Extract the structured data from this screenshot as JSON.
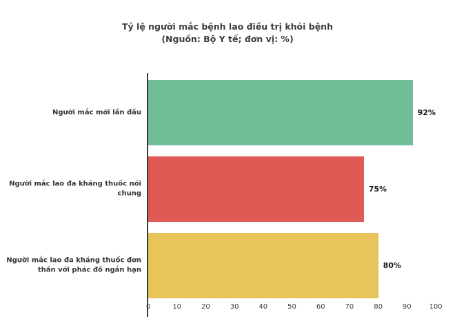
{
  "title": {
    "line1": "Tỷ lệ người mắc bệnh lao điều trị khỏi bệnh",
    "line2": "(Nguồn: Bộ Y tế; đơn vị: %)"
  },
  "chart_data": {
    "type": "bar",
    "orientation": "horizontal",
    "title": "Tỷ lệ người mắc bệnh lao điều trị khỏi bệnh (Nguồn: Bộ Y tế; đơn vị: %)",
    "categories": [
      "Người mắc mới lần đầu",
      "Người mắc lao đa kháng thuốc nói chung",
      "Người mắc lao đa kháng thuốc đơn thần với phác đồ ngắn hạn"
    ],
    "values": [
      92,
      75,
      80
    ],
    "value_labels": [
      "92%",
      "75%",
      "80%"
    ],
    "bar_colors": [
      "#6fbe98",
      "#df5a55",
      "#e9c45a"
    ],
    "xlim": [
      0,
      100
    ],
    "x_ticks": [
      0,
      10,
      20,
      30,
      40,
      50,
      60,
      70,
      80,
      90,
      100
    ],
    "xlabel": "",
    "ylabel": "",
    "legend": "none",
    "grid": "off"
  },
  "colors": {
    "axis": "#3a3a3a",
    "text": "#333333",
    "background": "#ffffff"
  }
}
